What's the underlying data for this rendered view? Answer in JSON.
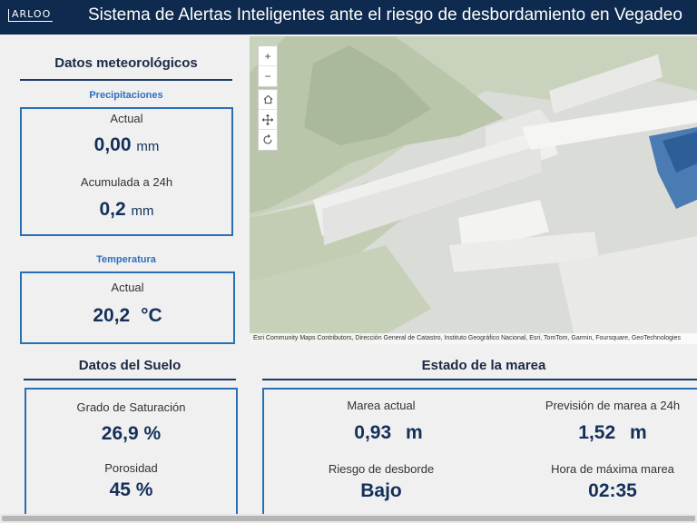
{
  "header": {
    "logo": "ARLOO",
    "title": "Sistema de Alertas Inteligentes ante el riesgo de desbordamiento en Vegadeo"
  },
  "meteo": {
    "title": "Datos meteorológicos",
    "precip": {
      "title": "Precipitaciones",
      "actual_label": "Actual",
      "actual_value": "0,00",
      "actual_unit": "mm",
      "acc_label": "Acumulada a 24h",
      "acc_value": "0,2",
      "acc_unit": "mm"
    },
    "temp": {
      "title": "Temperatura",
      "actual_label": "Actual",
      "actual_value": "20,2",
      "actual_unit": "°C"
    }
  },
  "suelo": {
    "title": "Datos del Suelo",
    "saturation_label": "Grado de Saturación",
    "saturation_value": "26,9 %",
    "porosity_label": "Porosidad",
    "porosity_value": "45 %"
  },
  "marea": {
    "title": "Estado de la marea",
    "current_label": "Marea actual",
    "current_value": "0,93",
    "current_unit": "m",
    "forecast_label": "Previsión de marea a 24h",
    "forecast_value": "1,52",
    "forecast_unit": "m",
    "risk_label": "Riesgo de desborde",
    "risk_value": "Bajo",
    "maxtime_label": "Hora de máxima marea",
    "maxtime_value": "02:35"
  },
  "map": {
    "zoom_in": "+",
    "zoom_out": "−",
    "home_icon": "home-icon",
    "pan_icon": "pan-icon",
    "rotate_icon": "rotate-icon",
    "attribution": "Esri Community Maps Contributors, Dirección General de Catastro, Instituto Geográfico Nacional, Esri, TomTom, Garmin, Foursquare, GeoTechnologies"
  },
  "colors": {
    "header_bg": "#0e2a4e",
    "accent_blue": "#2a6fb5",
    "value_navy": "#14305a"
  }
}
